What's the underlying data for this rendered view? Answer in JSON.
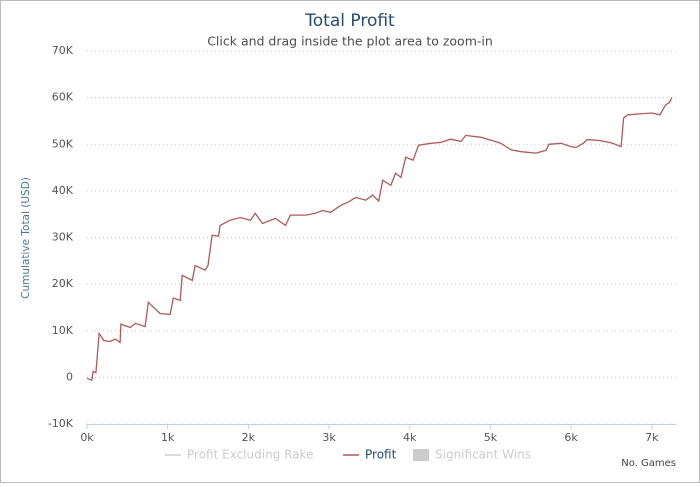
{
  "chart_data": {
    "type": "line",
    "title": "Total Profit",
    "subtitle": "Click and drag inside the plot area to zoom-in",
    "x_label": "No. Games",
    "y_label": "Cumulative Total (USD)",
    "xlim": [
      0,
      7300
    ],
    "ylim": [
      -10000,
      70000
    ],
    "xticks": [
      {
        "value": 0,
        "label": "0k"
      },
      {
        "value": 1000,
        "label": "1k"
      },
      {
        "value": 2000,
        "label": "2k"
      },
      {
        "value": 3000,
        "label": "3k"
      },
      {
        "value": 4000,
        "label": "4k"
      },
      {
        "value": 5000,
        "label": "5k"
      },
      {
        "value": 6000,
        "label": "6k"
      },
      {
        "value": 7000,
        "label": "7k"
      }
    ],
    "yticks": [
      {
        "value": -10000,
        "label": "-10K"
      },
      {
        "value": 0,
        "label": "0"
      },
      {
        "value": 10000,
        "label": "10K"
      },
      {
        "value": 20000,
        "label": "20K"
      },
      {
        "value": 30000,
        "label": "30K"
      },
      {
        "value": 40000,
        "label": "40K"
      },
      {
        "value": 50000,
        "label": "50K"
      },
      {
        "value": 60000,
        "label": "60K"
      },
      {
        "value": 70000,
        "label": "70K"
      }
    ],
    "grid": true,
    "x": [
      0,
      60,
      75,
      110,
      150,
      210,
      285,
      350,
      410,
      420,
      535,
      600,
      720,
      760,
      905,
      1030,
      1070,
      1155,
      1180,
      1305,
      1340,
      1465,
      1500,
      1550,
      1630,
      1650,
      1775,
      1900,
      2025,
      2085,
      2175,
      2335,
      2460,
      2520,
      2710,
      2830,
      2920,
      3020,
      3145,
      3240,
      3330,
      3455,
      3540,
      3615,
      3665,
      3765,
      3825,
      3890,
      3950,
      4040,
      4110,
      4260,
      4385,
      4510,
      4635,
      4695,
      4880,
      5005,
      5130,
      5255,
      5380,
      5565,
      5690,
      5725,
      5875,
      6000,
      6060,
      6150,
      6200,
      6350,
      6500,
      6620,
      6650,
      6700,
      6850,
      7000,
      7100,
      7170,
      7220,
      7250
    ],
    "series": [
      {
        "name": "Profit",
        "color": "#b0595b",
        "values": [
          -200,
          -600,
          1300,
          1000,
          9400,
          7900,
          7700,
          8200,
          7500,
          11400,
          10700,
          11600,
          10900,
          16100,
          13700,
          13500,
          17000,
          16500,
          21900,
          20800,
          24000,
          23000,
          24000,
          30500,
          30300,
          32600,
          33700,
          34300,
          33700,
          35200,
          33000,
          34100,
          32600,
          34800,
          34800,
          35200,
          35800,
          35400,
          36900,
          37600,
          38600,
          38000,
          39100,
          37800,
          42300,
          41200,
          43800,
          42900,
          47200,
          46600,
          49800,
          50200,
          50400,
          51100,
          50600,
          51900,
          51500,
          50900,
          50200,
          48800,
          48400,
          48100,
          48700,
          50000,
          50200,
          49500,
          49300,
          50200,
          51000,
          50800,
          50300,
          49500,
          55600,
          56300,
          56500,
          56700,
          56300,
          58400,
          59000,
          60000
        ]
      }
    ],
    "legend_extra": [
      {
        "name": "Profit Excluding Rake",
        "color": "#cccccc"
      },
      {
        "name": "Significant Wins",
        "color": "#cccccc"
      }
    ]
  }
}
